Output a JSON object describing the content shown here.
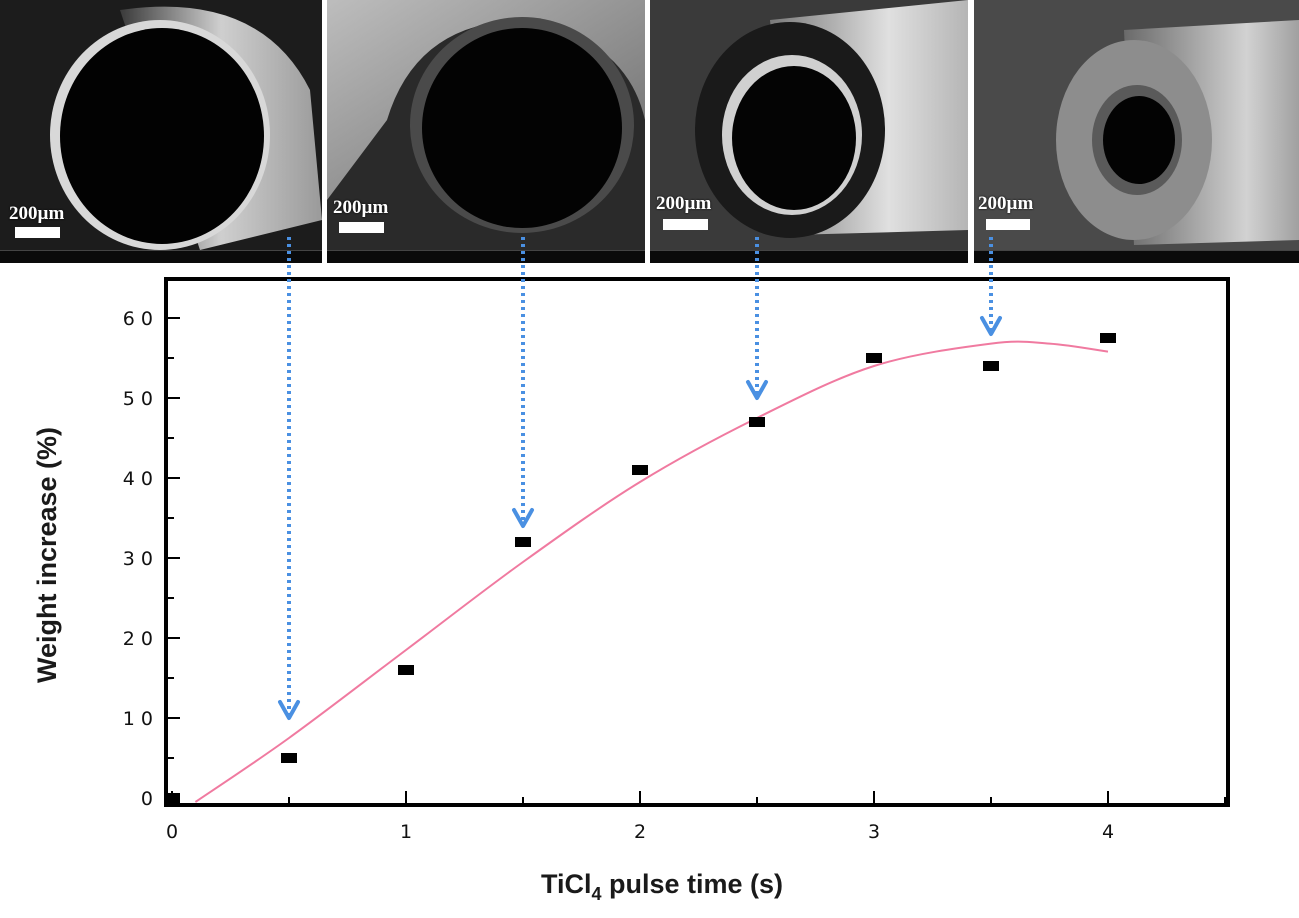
{
  "panels": [
    {
      "scale_label": "200µm"
    },
    {
      "scale_label": "200µm"
    },
    {
      "scale_label": "200µm"
    },
    {
      "scale_label": "200µm"
    }
  ],
  "colors": {
    "fit_curve": "#f07aa0",
    "arrow": "#4a90e2",
    "marker": "#000000"
  },
  "chart_data": {
    "type": "scatter",
    "xlabel": "TiCl4 pulse time (s)",
    "ylabel": "Weight increase (%)",
    "xlim": [
      0,
      4.5
    ],
    "ylim": [
      0,
      65
    ],
    "xticks": [
      0,
      1,
      2,
      3,
      4
    ],
    "yticks": [
      0,
      10,
      20,
      30,
      40,
      50,
      60
    ],
    "xtick_labels": [
      "0",
      "1",
      "2",
      "3",
      "4"
    ],
    "ytick_labels": [
      "0",
      "1 0",
      "2 0",
      "3 0",
      "4 0",
      "5 0",
      "6 0"
    ],
    "series": [
      {
        "type": "scatter",
        "x": [
          0,
          0.5,
          1,
          1.5,
          2,
          2.5,
          3,
          3.5,
          4
        ],
        "y": [
          0,
          5,
          16,
          32,
          41,
          47,
          55,
          54,
          57.5
        ]
      },
      {
        "type": "line",
        "x": [
          0.1,
          0.5,
          1.0,
          1.5,
          2.0,
          2.5,
          3.0,
          3.5,
          3.75,
          4.0
        ],
        "y": [
          -0.5,
          7.5,
          18.5,
          29.5,
          39.5,
          47.5,
          54.0,
          56.8,
          56.8,
          55.8
        ]
      }
    ],
    "annotations": [
      {
        "type": "arrow",
        "from_panel": 1,
        "to": [
          0.5,
          10
        ]
      },
      {
        "type": "arrow",
        "from_panel": 2,
        "to": [
          1.5,
          34
        ]
      },
      {
        "type": "arrow",
        "from_panel": 3,
        "to": [
          2.5,
          50
        ]
      },
      {
        "type": "arrow",
        "from_panel": 4,
        "to": [
          3.5,
          58
        ]
      }
    ]
  }
}
